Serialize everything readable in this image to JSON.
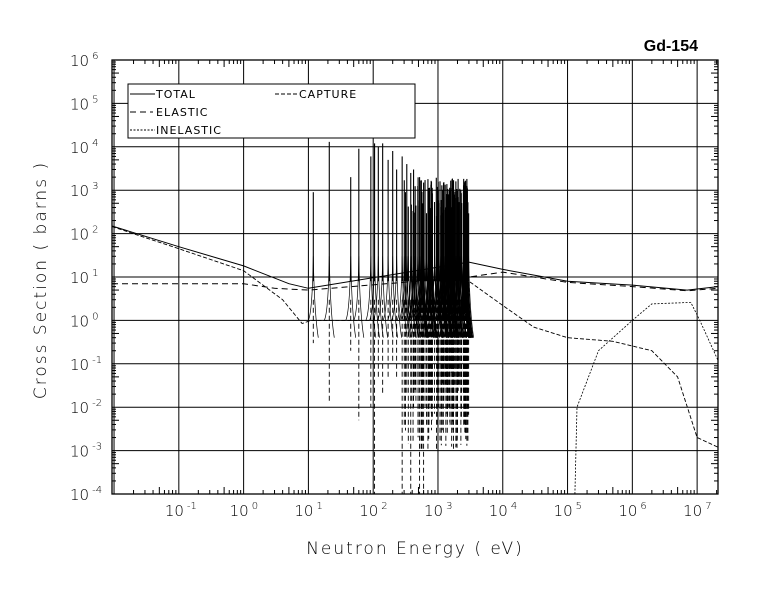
{
  "chart_data": {
    "type": "line",
    "title": "Gd-154",
    "xlabel": "Neutron Energy ( eV)",
    "ylabel": "Cross Section ( barns )",
    "xscale": "log",
    "yscale": "log",
    "xlim": [
      0.0093,
      21000000
    ],
    "ylim": [
      0.0001,
      1000000
    ],
    "grid": true,
    "legend_position": "top-left",
    "x_tick_labels": [
      {
        "base": "10",
        "exp": "-1",
        "value": 0.1
      },
      {
        "base": "10",
        "exp": "0",
        "value": 1
      },
      {
        "base": "10",
        "exp": "1",
        "value": 10
      },
      {
        "base": "10",
        "exp": "2",
        "value": 100
      },
      {
        "base": "10",
        "exp": "3",
        "value": 1000
      },
      {
        "base": "10",
        "exp": "4",
        "value": 10000
      },
      {
        "base": "10",
        "exp": "5",
        "value": 100000
      },
      {
        "base": "10",
        "exp": "6",
        "value": 1000000
      },
      {
        "base": "10",
        "exp": "7",
        "value": 10000000
      }
    ],
    "y_tick_labels": [
      {
        "base": "10",
        "exp": "-4",
        "value": 0.0001
      },
      {
        "base": "10",
        "exp": "-3",
        "value": 0.001
      },
      {
        "base": "10",
        "exp": "-2",
        "value": 0.01
      },
      {
        "base": "10",
        "exp": "-1",
        "value": 0.1
      },
      {
        "base": "10",
        "exp": "0",
        "value": 1
      },
      {
        "base": "10",
        "exp": "1",
        "value": 10
      },
      {
        "base": "10",
        "exp": "2",
        "value": 100
      },
      {
        "base": "10",
        "exp": "3",
        "value": 1000
      },
      {
        "base": "10",
        "exp": "4",
        "value": 10000
      },
      {
        "base": "10",
        "exp": "5",
        "value": 100000
      },
      {
        "base": "10",
        "exp": "6",
        "value": 1000000
      }
    ],
    "series": [
      {
        "name": "TOTAL",
        "style": "solid",
        "points": [
          [
            0.0093,
            150
          ],
          [
            0.1,
            50
          ],
          [
            1,
            18
          ],
          [
            5,
            7
          ],
          [
            10,
            5.5
          ],
          [
            3000,
            22
          ],
          [
            10000,
            15
          ],
          [
            100000,
            8
          ],
          [
            1000000,
            6.5
          ],
          [
            7000000,
            5
          ],
          [
            21000000,
            6
          ]
        ]
      },
      {
        "name": "ELASTIC",
        "style": "dashed",
        "points": [
          [
            0.0093,
            7
          ],
          [
            1,
            7
          ],
          [
            3,
            5.5
          ],
          [
            10,
            5
          ],
          [
            3000,
            10
          ],
          [
            10000,
            13
          ],
          [
            100000,
            7.5
          ],
          [
            1000000,
            6
          ],
          [
            7000000,
            4.8
          ],
          [
            21000000,
            5.5
          ]
        ]
      },
      {
        "name": "INELASTIC",
        "style": "dotted",
        "points": [
          [
            130000,
            0.0001
          ],
          [
            140000,
            0.01
          ],
          [
            300000,
            0.2
          ],
          [
            1000000,
            1
          ],
          [
            2000000,
            2.4
          ],
          [
            8000000,
            2.6
          ],
          [
            11000000,
            1
          ],
          [
            21000000,
            0.12
          ]
        ]
      },
      {
        "name": "CAPTURE",
        "style": "dashdash",
        "points": [
          [
            0.0093,
            145
          ],
          [
            0.1,
            45
          ],
          [
            1,
            14
          ],
          [
            4,
            3
          ],
          [
            8,
            0.85
          ],
          [
            11,
            1
          ],
          [
            3000,
            1
          ],
          [
            3000,
            8
          ],
          [
            10000,
            2.2
          ],
          [
            30000,
            0.7
          ],
          [
            100000,
            0.4
          ],
          [
            500000,
            0.33
          ],
          [
            2000000,
            0.2
          ],
          [
            5000000,
            0.05
          ],
          [
            10000000,
            0.002
          ],
          [
            21000000,
            0.0012
          ]
        ]
      }
    ],
    "resolved_resonances": {
      "range_eV": [
        11,
        3000
      ],
      "prominent": [
        [
          11.9,
          900,
          0.3
        ],
        [
          21,
          13000,
          0.012
        ],
        [
          45,
          2000,
          0.2
        ],
        [
          60,
          9000,
          0.005
        ],
        [
          92,
          6000,
          0.01
        ],
        [
          105,
          12000,
          0.0001
        ],
        [
          120,
          10000,
          0.05
        ],
        [
          140,
          12000,
          0.02
        ],
        [
          170,
          5000,
          0.05
        ],
        [
          200,
          8000,
          0.1
        ],
        [
          230,
          3000,
          0.05
        ],
        [
          280,
          6000,
          0.0001
        ],
        [
          330,
          4000,
          0.02
        ],
        [
          380,
          2500,
          0.0001
        ],
        [
          420,
          3000,
          0.01
        ],
        [
          520,
          2000,
          0.0001
        ],
        [
          600,
          1500,
          0.0001
        ],
        [
          700,
          1800,
          0.001
        ]
      ],
      "dense_count": 140,
      "dense_range_eV": [
        300,
        3000
      ]
    }
  },
  "legend": {
    "total": "TOTAL",
    "capture": "CAPTURE",
    "elastic": "ELASTIC",
    "inelastic": "INELASTIC"
  }
}
